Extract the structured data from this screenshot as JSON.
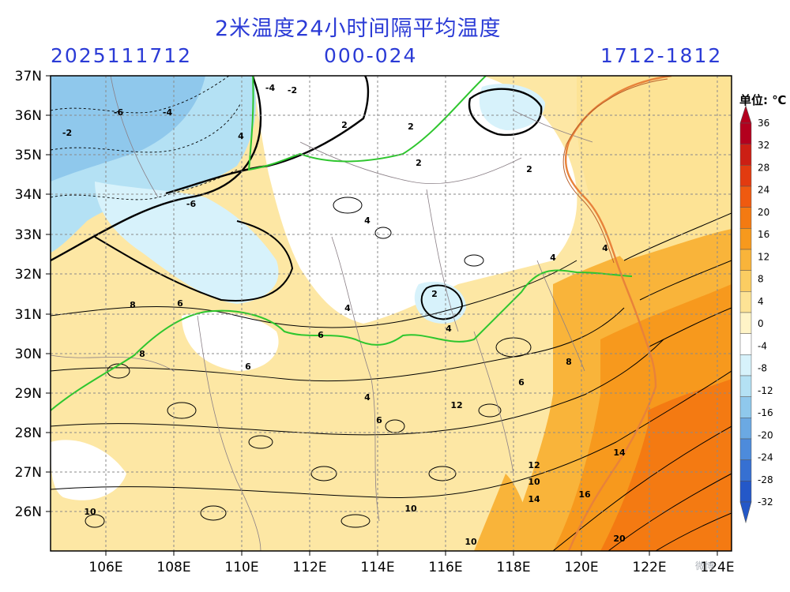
{
  "header": {
    "title": "2米温度24小时间隔平均温度",
    "run_time": "2025111712",
    "lead_range": "000-024",
    "valid_range": "1712-1812"
  },
  "axes": {
    "lat_labels": [
      "37N",
      "36N",
      "35N",
      "34N",
      "33N",
      "32N",
      "31N",
      "30N",
      "29N",
      "28N",
      "27N",
      "26N"
    ],
    "lon_labels": [
      "106E",
      "108E",
      "110E",
      "112E",
      "114E",
      "116E",
      "118E",
      "120E",
      "122E",
      "124E"
    ]
  },
  "colorbar": {
    "unit": "单位: ℃",
    "labels": [
      "36",
      "32",
      "28",
      "24",
      "20",
      "16",
      "12",
      "8",
      "4",
      "0",
      "-4",
      "-8",
      "-12",
      "-16",
      "-20",
      "-24",
      "-28",
      "-32"
    ],
    "colors": [
      "#b3001e",
      "#cc1f14",
      "#e23b10",
      "#ef5a10",
      "#f47a12",
      "#f7991d",
      "#f9b43a",
      "#fbcd62",
      "#fde395",
      "#fff4c7",
      "#ffffff",
      "#d7f2fb",
      "#b4e1f4",
      "#8fc8ec",
      "#6ba9e3",
      "#4d8bdb",
      "#3670d2",
      "#2458c8"
    ]
  },
  "contour_labels": [
    "-6",
    "-4",
    "-2",
    "-4",
    "-2",
    "4",
    "2",
    "2",
    "-6",
    "4",
    "2",
    "2",
    "4",
    "4",
    "8",
    "6",
    "4",
    "4",
    "2",
    "6",
    "8",
    "6",
    "6",
    "8",
    "10",
    "12",
    "10",
    "14",
    "16",
    "14",
    "20",
    "10",
    "10",
    "12",
    "4",
    "6"
  ],
  "watermark": "微博"
}
